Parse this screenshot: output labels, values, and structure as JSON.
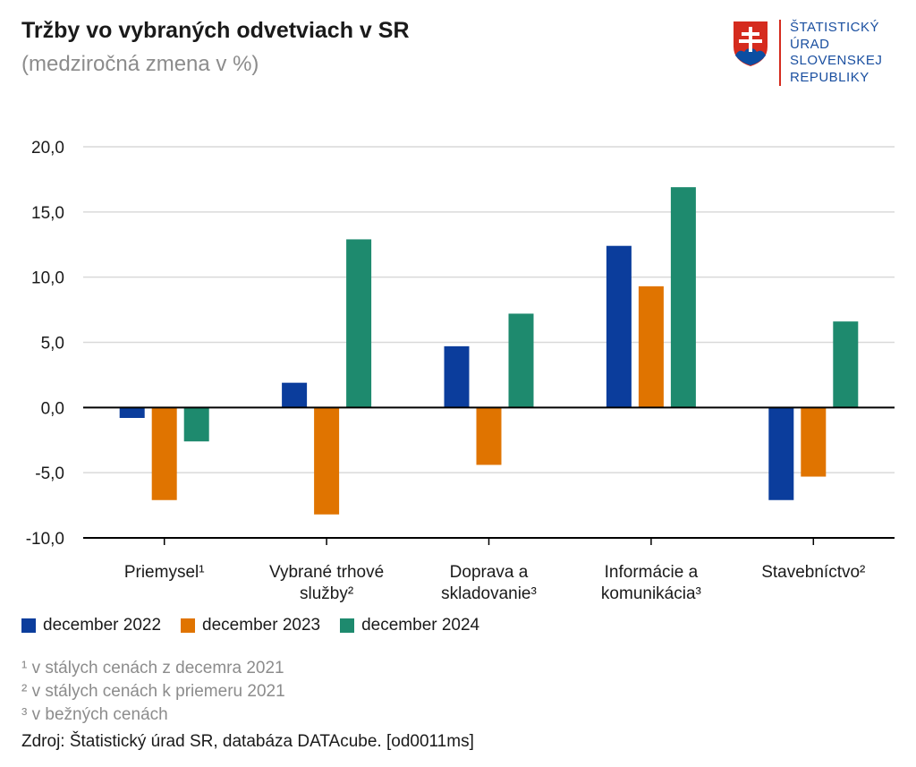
{
  "header": {
    "title": "Tržby vo vybraných odvetviach v SR",
    "subtitle": "(medziročná zmena v %)"
  },
  "logo": {
    "icon": "slovak-coat-of-arms-icon",
    "lines": [
      "ŠTATISTICKÝ",
      "ÚRAD",
      "SLOVENSKEJ",
      "REPUBLIKY"
    ]
  },
  "colors": {
    "series_2022": "#0b3d9c",
    "series_2023": "#e07400",
    "series_2024": "#1e8a6e",
    "grid": "#d9d9d9",
    "zero_line": "#000000"
  },
  "chart_data": {
    "type": "bar",
    "categories": [
      [
        "Priemysel¹"
      ],
      [
        "Vybrané trhové",
        "služby²"
      ],
      [
        "Doprava a",
        "skladovanie³"
      ],
      [
        "Informácie a",
        "komunikácia³"
      ],
      [
        "Stavebníctvo²"
      ]
    ],
    "series": [
      {
        "name": "december 2022",
        "values": [
          -0.8,
          1.9,
          4.7,
          12.4,
          -7.1
        ]
      },
      {
        "name": "december 2023",
        "values": [
          -7.1,
          -8.2,
          -4.4,
          9.3,
          -5.3
        ]
      },
      {
        "name": "december 2024",
        "values": [
          -2.6,
          12.9,
          7.2,
          16.9,
          6.6
        ]
      }
    ],
    "ylim": [
      -10,
      20
    ],
    "yticks": [
      "-10,0",
      "-5,0",
      "0,0",
      "5,0",
      "10,0",
      "15,0",
      "20,0"
    ],
    "grid": true,
    "legend": "bottom-left"
  },
  "footnotes": [
    "¹ v stálych cenách z decemra 2021",
    "² v stálych cenách k priemeru 2021",
    "³ v bežných cenách"
  ],
  "source": "Zdroj: Štatistický úrad SR, databáza DATAcube. [od0011ms]"
}
